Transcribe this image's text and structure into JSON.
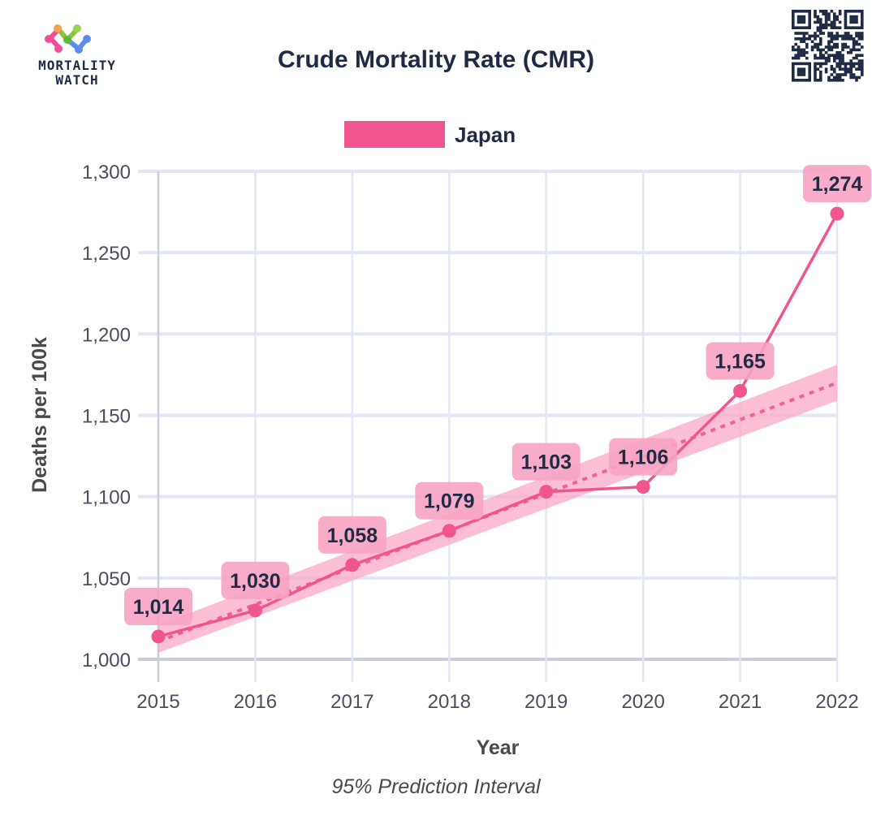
{
  "header": {
    "logo_line1": "MORTALITY",
    "logo_line2": "WATCH",
    "qr_code_icon": "qr-code-icon"
  },
  "colors": {
    "series": "#f0558f",
    "band": "#f9a8c6",
    "label_bg": "#f7a3c3",
    "grid": "#e2e6f5",
    "axis": "#c9cddc",
    "title": "#1f2a44"
  },
  "chart_data": {
    "type": "line",
    "title": "Crude Mortality Rate (CMR)",
    "xlabel": "Year",
    "ylabel": "Deaths per 100k",
    "caption": "95% Prediction Interval",
    "legend": {
      "entries": [
        "Japan"
      ],
      "placement": "top-center"
    },
    "categories": [
      "2015",
      "2016",
      "2017",
      "2018",
      "2019",
      "2020",
      "2021",
      "2022"
    ],
    "x_tick_labels": [
      "2015",
      "2016",
      "2017",
      "2018",
      "2019",
      "2020",
      "2021",
      "2022"
    ],
    "ylim": [
      1000,
      1300
    ],
    "y_ticks": [
      1000,
      1050,
      1100,
      1150,
      1200,
      1250,
      1300
    ],
    "y_tick_labels": [
      "1,000",
      "1,050",
      "1,100",
      "1,150",
      "1,200",
      "1,250",
      "1,300"
    ],
    "grid": true,
    "series": [
      {
        "name": "Japan",
        "values": [
          1014,
          1030,
          1058,
          1079,
          1103,
          1106,
          1165,
          1274
        ],
        "data_labels": [
          "1,014",
          "1,030",
          "1,058",
          "1,079",
          "1,103",
          "1,106",
          "1,165",
          "1,274"
        ]
      }
    ],
    "baseline": {
      "name": "Trend baseline",
      "style": "dotted",
      "start": {
        "x": "2015",
        "y": 1011
      },
      "end": {
        "x": "2022",
        "y": 1170
      }
    },
    "prediction_interval": {
      "name": "95% Prediction Interval",
      "lower_start": 1004,
      "upper_start": 1021,
      "lower_end": 1159,
      "upper_end": 1181
    }
  }
}
